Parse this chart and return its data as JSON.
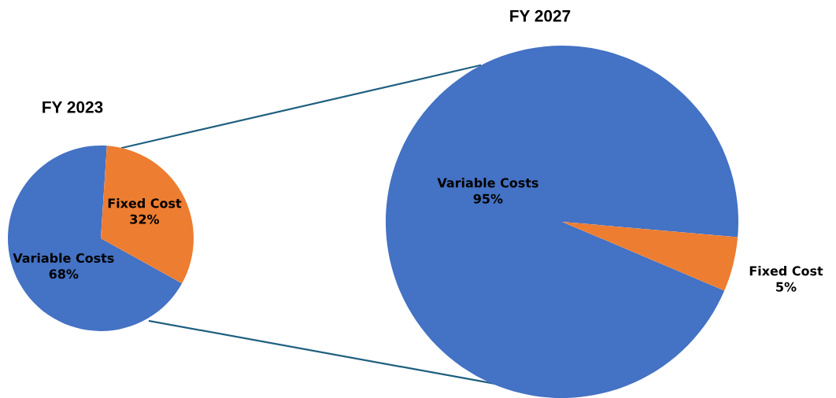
{
  "chart_data": [
    {
      "type": "pie",
      "title": "FY 2023",
      "categories": [
        "Variable Costs",
        "Fixed Cost"
      ],
      "values": [
        68,
        32
      ],
      "value_labels": [
        "68%",
        "32%"
      ],
      "colors": [
        "#4472c4",
        "#ed7d31"
      ]
    },
    {
      "type": "pie",
      "title": "FY 2027",
      "categories": [
        "Variable Costs",
        "Fixed Cost"
      ],
      "values": [
        95,
        5
      ],
      "value_labels": [
        "95%",
        "5%"
      ],
      "colors": [
        "#4472c4",
        "#ed7d31"
      ]
    }
  ]
}
